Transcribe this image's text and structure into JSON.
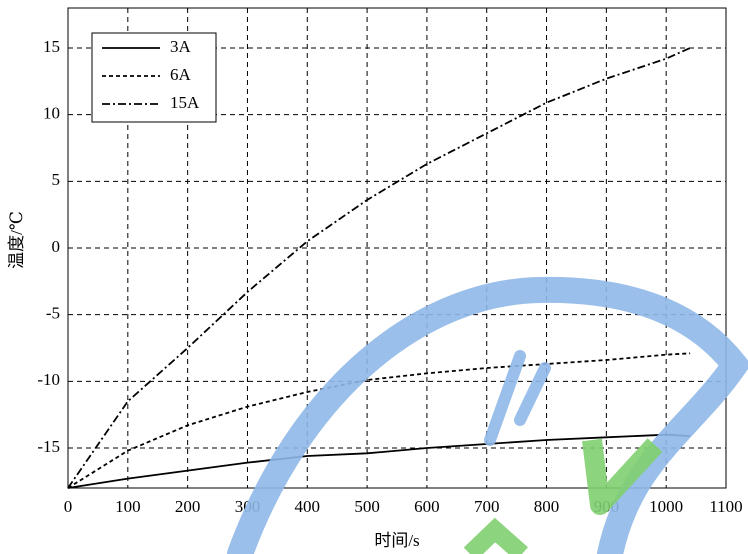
{
  "chart_data": {
    "type": "line",
    "x_label": "时间/s",
    "y_label": "温度/℃",
    "x": [
      0,
      100,
      200,
      300,
      400,
      500,
      600,
      700,
      800,
      900,
      1000,
      1040
    ],
    "series": [
      {
        "name": "3A",
        "color": "#000000",
        "style": "solid",
        "values": [
          -18,
          -17.3,
          -16.7,
          -16.1,
          -15.6,
          -15.4,
          -15.0,
          -14.7,
          -14.4,
          -14.2,
          -14.0,
          -14.1
        ]
      },
      {
        "name": "6A",
        "color": "#000000",
        "style": "dashed",
        "values": [
          -18,
          -15.2,
          -13.3,
          -11.9,
          -10.8,
          -9.9,
          -9.4,
          -9.0,
          -8.7,
          -8.4,
          -8.0,
          -7.9
        ]
      },
      {
        "name": "15A",
        "color": "#000000",
        "style": "dashdot",
        "values": [
          -18,
          -11.5,
          -7.5,
          -3.3,
          0.5,
          3.6,
          6.3,
          8.6,
          10.9,
          12.7,
          14.2,
          15.0
        ]
      }
    ],
    "xlim": [
      0,
      1100
    ],
    "xticks": [
      0,
      100,
      200,
      300,
      400,
      500,
      600,
      700,
      800,
      900,
      1000,
      1100
    ],
    "ylim": [
      -18,
      18
    ],
    "yticks": [
      -15,
      -10,
      -5,
      0,
      5,
      10,
      15
    ],
    "grid": true,
    "legend": "upper left"
  }
}
